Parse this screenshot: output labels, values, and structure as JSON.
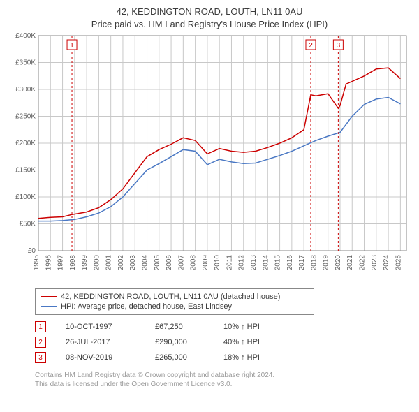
{
  "title_line1": "42, KEDDINGTON ROAD, LOUTH, LN11 0AU",
  "title_line2": "Price paid vs. HM Land Registry's House Price Index (HPI)",
  "chart": {
    "type": "line",
    "background_color": "#ffffff",
    "grid_color": "#c8c8c8",
    "axis_color": "#888888",
    "tick_label_color": "#606060",
    "tick_fontsize": 10,
    "x_years": [
      1995,
      1996,
      1997,
      1998,
      1999,
      2000,
      2001,
      2002,
      2003,
      2004,
      2005,
      2006,
      2007,
      2008,
      2009,
      2010,
      2011,
      2012,
      2013,
      2014,
      2015,
      2016,
      2017,
      2018,
      2019,
      2020,
      2021,
      2022,
      2023,
      2024,
      2025
    ],
    "xlim": [
      1995,
      2025.5
    ],
    "ylim": [
      0,
      400000
    ],
    "ytick_step": 50000,
    "yticks": [
      "£0",
      "£50K",
      "£100K",
      "£150K",
      "£200K",
      "£250K",
      "£300K",
      "£350K",
      "£400K"
    ],
    "vertical_marker_color": "#cc0000",
    "vertical_marker_dash": "3,3",
    "vertical_markers": [
      {
        "n": 1,
        "year": 1997.78
      },
      {
        "n": 2,
        "year": 2017.57
      },
      {
        "n": 3,
        "year": 2019.85
      }
    ],
    "series": [
      {
        "key": "red",
        "color": "#cc0000",
        "width": 1.5,
        "data": [
          [
            1995,
            60000
          ],
          [
            1996,
            62000
          ],
          [
            1997,
            63000
          ],
          [
            1997.78,
            67250
          ],
          [
            1998,
            68000
          ],
          [
            1999,
            72000
          ],
          [
            2000,
            80000
          ],
          [
            2001,
            95000
          ],
          [
            2002,
            115000
          ],
          [
            2003,
            145000
          ],
          [
            2004,
            175000
          ],
          [
            2005,
            188000
          ],
          [
            2006,
            198000
          ],
          [
            2007,
            210000
          ],
          [
            2008,
            205000
          ],
          [
            2009,
            180000
          ],
          [
            2010,
            190000
          ],
          [
            2011,
            185000
          ],
          [
            2012,
            183000
          ],
          [
            2013,
            185000
          ],
          [
            2014,
            192000
          ],
          [
            2015,
            200000
          ],
          [
            2016,
            210000
          ],
          [
            2017,
            225000
          ],
          [
            2017.57,
            290000
          ],
          [
            2018,
            288000
          ],
          [
            2019,
            292000
          ],
          [
            2019.85,
            265000
          ],
          [
            2020,
            270000
          ],
          [
            2020.5,
            310000
          ],
          [
            2021,
            315000
          ],
          [
            2022,
            325000
          ],
          [
            2023,
            338000
          ],
          [
            2024,
            340000
          ],
          [
            2025,
            320000
          ]
        ]
      },
      {
        "key": "blue",
        "color": "#4a78c4",
        "width": 1.5,
        "data": [
          [
            1995,
            55000
          ],
          [
            1996,
            55000
          ],
          [
            1997,
            56000
          ],
          [
            1998,
            58000
          ],
          [
            1999,
            63000
          ],
          [
            2000,
            70000
          ],
          [
            2001,
            82000
          ],
          [
            2002,
            100000
          ],
          [
            2003,
            125000
          ],
          [
            2004,
            150000
          ],
          [
            2005,
            162000
          ],
          [
            2006,
            175000
          ],
          [
            2007,
            188000
          ],
          [
            2008,
            185000
          ],
          [
            2009,
            160000
          ],
          [
            2010,
            170000
          ],
          [
            2011,
            165000
          ],
          [
            2012,
            162000
          ],
          [
            2013,
            163000
          ],
          [
            2014,
            170000
          ],
          [
            2015,
            177000
          ],
          [
            2016,
            185000
          ],
          [
            2017,
            195000
          ],
          [
            2018,
            205000
          ],
          [
            2019,
            213000
          ],
          [
            2020,
            220000
          ],
          [
            2021,
            250000
          ],
          [
            2022,
            272000
          ],
          [
            2023,
            282000
          ],
          [
            2024,
            285000
          ],
          [
            2025,
            273000
          ]
        ]
      }
    ]
  },
  "legend": {
    "red_label": "42, KEDDINGTON ROAD, LOUTH, LN11 0AU (detached house)",
    "blue_label": "HPI: Average price, detached house, East Lindsey"
  },
  "sales": [
    {
      "n": "1",
      "date": "10-OCT-1997",
      "price": "£67,250",
      "pct": "10% ↑ HPI"
    },
    {
      "n": "2",
      "date": "26-JUL-2017",
      "price": "£290,000",
      "pct": "40% ↑ HPI"
    },
    {
      "n": "3",
      "date": "08-NOV-2019",
      "price": "£265,000",
      "pct": "18% ↑ HPI"
    }
  ],
  "footnote_line1": "Contains HM Land Registry data © Crown copyright and database right 2024.",
  "footnote_line2": "This data is licensed under the Open Government Licence v3.0."
}
